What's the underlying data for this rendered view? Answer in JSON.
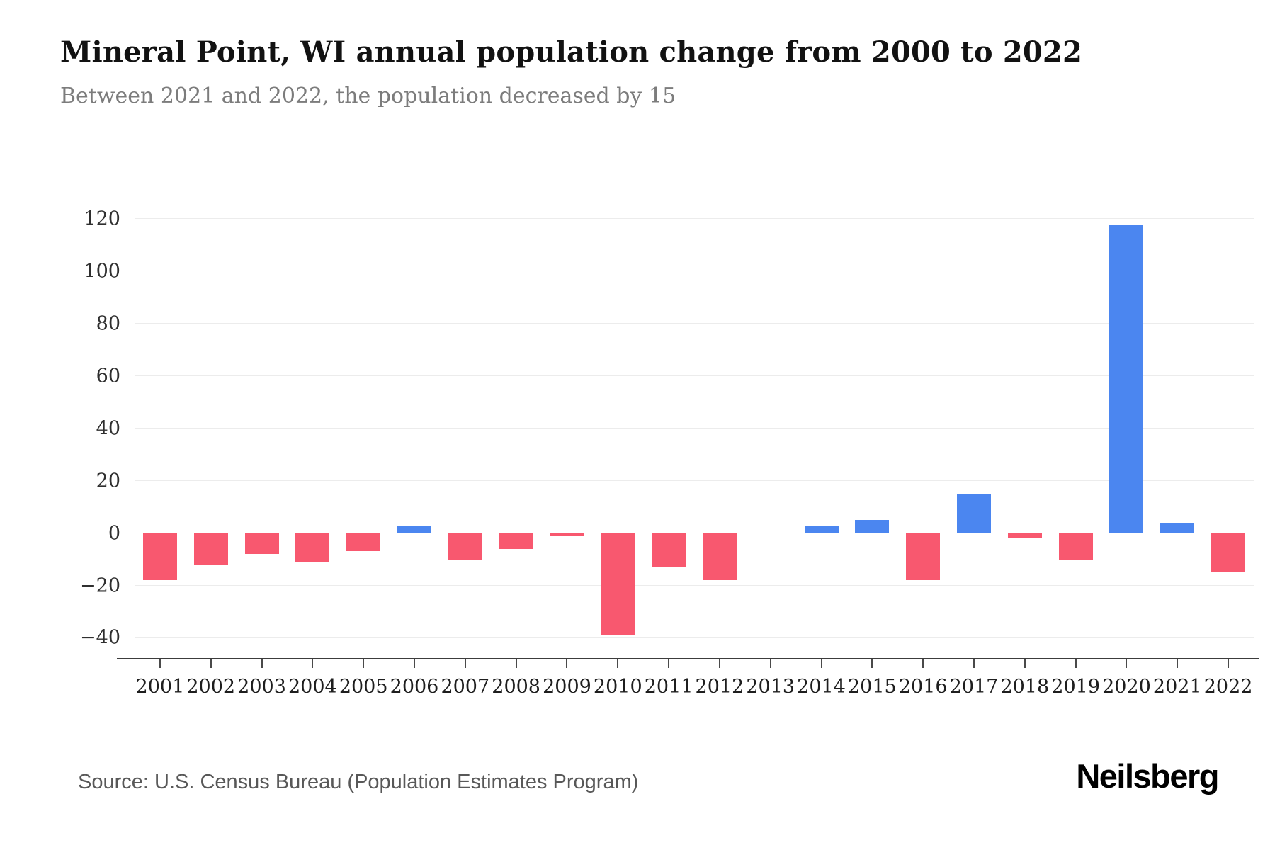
{
  "header": {
    "title": "Mineral Point, WI annual population change from 2000 to 2022",
    "subtitle": "Between 2021 and 2022, the population decreased by 15"
  },
  "footer": {
    "source": "Source: U.S. Census Bureau (Population Estimates Program)",
    "brand": "Neilsberg"
  },
  "chart_data": {
    "type": "bar",
    "title": "Mineral Point, WI annual population change from 2000 to 2022",
    "xlabel": "",
    "ylabel": "",
    "categories": [
      "2001",
      "2002",
      "2003",
      "2004",
      "2005",
      "2006",
      "2007",
      "2008",
      "2009",
      "2010",
      "2011",
      "2012",
      "2013",
      "2014",
      "2015",
      "2016",
      "2017",
      "2018",
      "2019",
      "2020",
      "2021",
      "2022"
    ],
    "values": [
      -18,
      -12,
      -8,
      -11,
      -7,
      3,
      -10,
      -6,
      -1,
      -39,
      -13,
      -18,
      0,
      3,
      5,
      -18,
      15,
      -2,
      -10,
      118,
      4,
      -15
    ],
    "ytick_values": [
      -40,
      -20,
      0,
      20,
      40,
      60,
      80,
      100,
      120
    ],
    "ytick_labels": [
      "−40",
      "−20",
      "0",
      "20",
      "40",
      "60",
      "80",
      "100",
      "120"
    ],
    "ylim": [
      -48,
      136
    ],
    "grid": true,
    "legend": false,
    "colors": {
      "positive": "#4b86f0",
      "negative": "#f8586f"
    }
  }
}
